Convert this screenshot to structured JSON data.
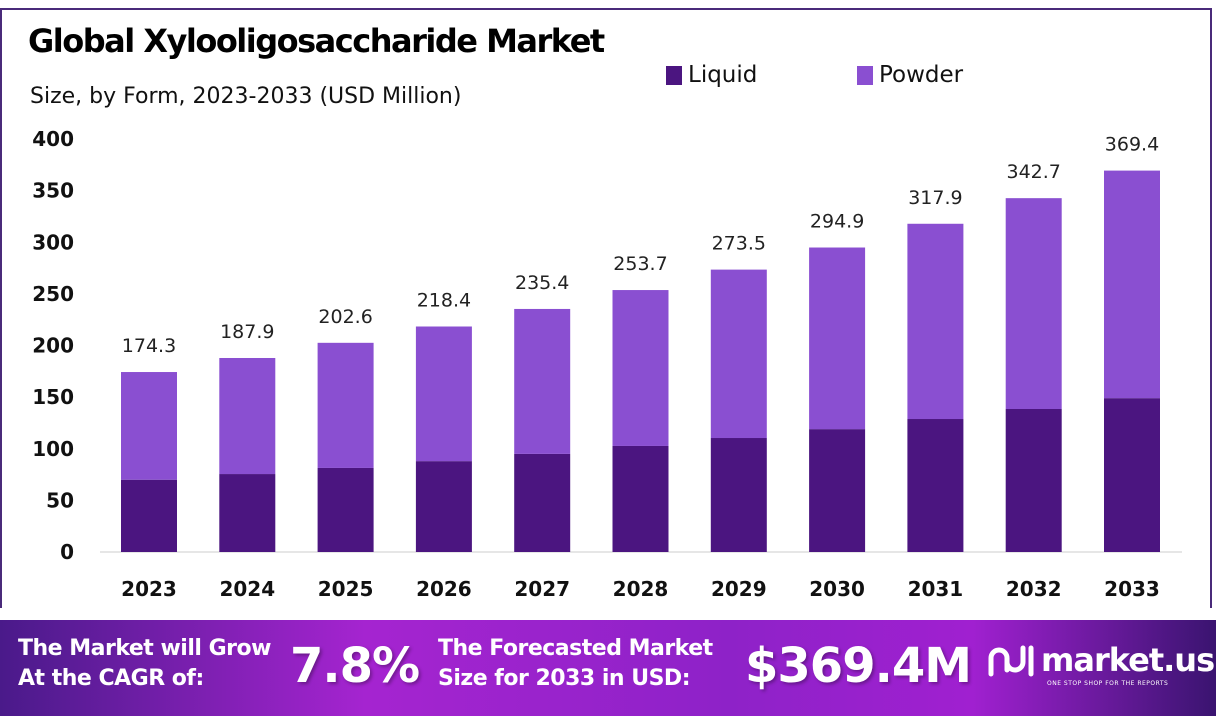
{
  "chart_data": {
    "type": "bar",
    "stacked": true,
    "title": "Global Xylooligosaccharide Market",
    "subtitle": "Size, by Form, 2023-2033 (USD Million)",
    "categories": [
      "2023",
      "2024",
      "2025",
      "2026",
      "2027",
      "2028",
      "2029",
      "2030",
      "2031",
      "2032",
      "2033"
    ],
    "series": [
      {
        "name": "Liquid",
        "color": "#4b1580",
        "values": [
          70,
          75.5,
          81.4,
          88,
          95,
          102.7,
          110.4,
          119,
          128.8,
          138.5,
          149
        ]
      },
      {
        "name": "Powder",
        "color": "#8a4fd1",
        "values": [
          104.3,
          112.4,
          121.2,
          130.4,
          140.4,
          151,
          163.1,
          175.9,
          189.1,
          204.2,
          220.4
        ]
      }
    ],
    "totals": [
      "174.3",
      "187.9",
      "202.6",
      "218.4",
      "235.4",
      "253.7",
      "273.5",
      "294.9",
      "317.9",
      "342.7",
      "369.4"
    ],
    "yticks": [
      "0",
      "50",
      "100",
      "150",
      "200",
      "250",
      "300",
      "350",
      "400"
    ],
    "ylim": [
      0,
      400
    ],
    "grid": false,
    "legend_position": "top"
  },
  "banner": {
    "cagr_label_1": "The Market will Grow",
    "cagr_label_2": "At the CAGR of:",
    "cagr_value": "7.8%",
    "forecast_label_1": "The Forecasted Market",
    "forecast_label_2": "Size for 2033 in USD:",
    "forecast_value": "$369.4M",
    "logo_text": "market.us",
    "logo_tagline": "ONE STOP SHOP FOR THE REPORTS"
  }
}
